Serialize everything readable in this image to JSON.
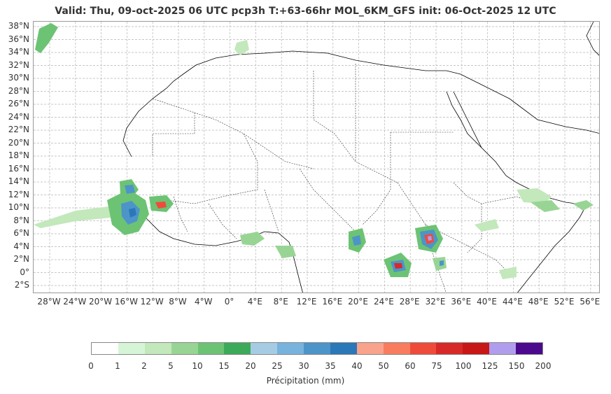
{
  "title": "Valid: Thu, 09-oct-2025   06 UTC   pcp3h   T:+63-66hr   MOL_6KM_GFS   init: 06-Oct-2025    12 UTC",
  "map": {
    "lat_labels": [
      "38°N",
      "36°N",
      "34°N",
      "32°N",
      "30°N",
      "28°N",
      "26°N",
      "24°N",
      "22°N",
      "20°N",
      "18°N",
      "16°N",
      "14°N",
      "12°N",
      "10°N",
      "8°N",
      "6°N",
      "4°N",
      "2°N",
      "0°",
      "2°S"
    ],
    "lon_labels": [
      "28°W",
      "24°W",
      "20°W",
      "16°W",
      "12°W",
      "8°W",
      "4°W",
      "0°",
      "4°E",
      "8°E",
      "12°E",
      "16°E",
      "20°E",
      "24°E",
      "28°E",
      "32°E",
      "36°E",
      "40°E",
      "44°E",
      "48°E",
      "52°E",
      "56°E"
    ]
  },
  "colorbar": {
    "colors": [
      "#ffffff",
      "#d6f5d6",
      "#c2e8bb",
      "#98d594",
      "#6cc374",
      "#3daa5a",
      "#a6cce3",
      "#77b3dd",
      "#4d94c9",
      "#2b78b8",
      "#f9a28c",
      "#f97c5f",
      "#ef4b3b",
      "#d82929",
      "#c81717",
      "#b19ded",
      "#4b0a8e"
    ],
    "ticks": [
      "0",
      "1",
      "2",
      "5",
      "10",
      "15",
      "20",
      "25",
      "30",
      "35",
      "40",
      "50",
      "60",
      "75",
      "100",
      "125",
      "150",
      "200"
    ],
    "label": "Précipitation (mm)"
  }
}
